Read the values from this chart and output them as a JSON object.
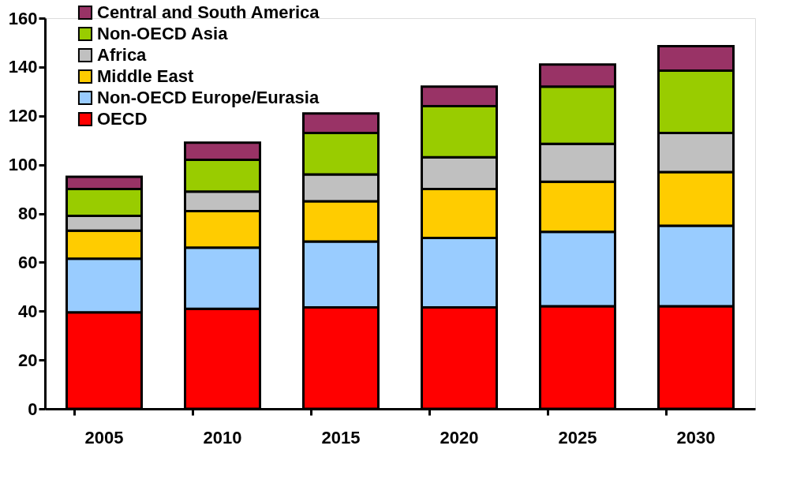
{
  "chart_data": {
    "type": "bar",
    "stacked": true,
    "categories": [
      "2005",
      "2010",
      "2015",
      "2020",
      "2025",
      "2030"
    ],
    "series": [
      {
        "name": "OECD",
        "color": "#ff0000",
        "values": [
          39.5,
          41,
          41.5,
          41.5,
          42,
          42
        ]
      },
      {
        "name": "Non-OECD Europe/Eurasia",
        "color": "#99ccff",
        "values": [
          22,
          25,
          27,
          28.5,
          30.5,
          33
        ]
      },
      {
        "name": "Middle East",
        "color": "#ffcc00",
        "values": [
          11.5,
          15,
          16.5,
          20,
          20.5,
          22
        ]
      },
      {
        "name": "Africa",
        "color": "#c0c0c0",
        "values": [
          6,
          8,
          11,
          13,
          15.5,
          16
        ]
      },
      {
        "name": "Non-OECD Asia",
        "color": "#99cc00",
        "values": [
          11,
          13,
          17,
          21,
          23.5,
          25.5
        ]
      },
      {
        "name": "Central and South America",
        "color": "#993366",
        "values": [
          5,
          7,
          8,
          8,
          9,
          10
        ]
      }
    ],
    "ylim": [
      0,
      160
    ],
    "yticks": [
      0,
      20,
      40,
      60,
      80,
      100,
      120,
      140,
      160
    ],
    "grid": false,
    "legend": "top left"
  }
}
